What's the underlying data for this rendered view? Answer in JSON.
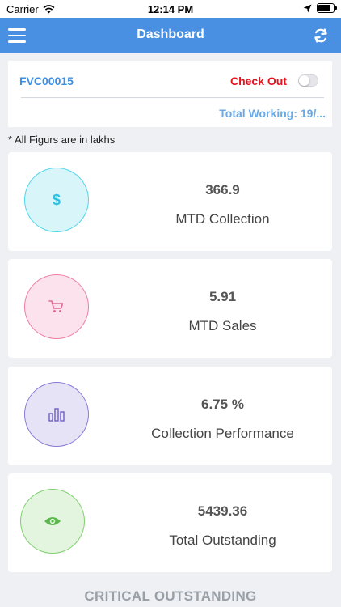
{
  "status_bar": {
    "carrier": "Carrier",
    "time": "12:14 PM"
  },
  "header": {
    "title": "Dashboard"
  },
  "checkin": {
    "employee_id": "FVC00015",
    "checkout_label": "Check Out",
    "total_working": "Total Working: 19/..."
  },
  "note": "* All Figurs are in lakhs",
  "cards": [
    {
      "value": "366.9",
      "label": "MTD Collection",
      "icon": "dollar-icon",
      "color": "#4fd6ea",
      "bg": "#d8f5fa"
    },
    {
      "value": "5.91",
      "label": "MTD Sales",
      "icon": "cart-icon",
      "color": "#ee7fa5",
      "bg": "#fbe2ec"
    },
    {
      "value": "6.75 %",
      "label": "Collection Performance",
      "icon": "bar-chart-icon",
      "color": "#8a7ad6",
      "bg": "#e6e3f6"
    },
    {
      "value": "5439.36",
      "label": "Total Outstanding",
      "icon": "eye-icon",
      "color": "#7fd06f",
      "bg": "#e3f5df"
    }
  ],
  "section_header": "CRITICAL OUTSTANDING"
}
